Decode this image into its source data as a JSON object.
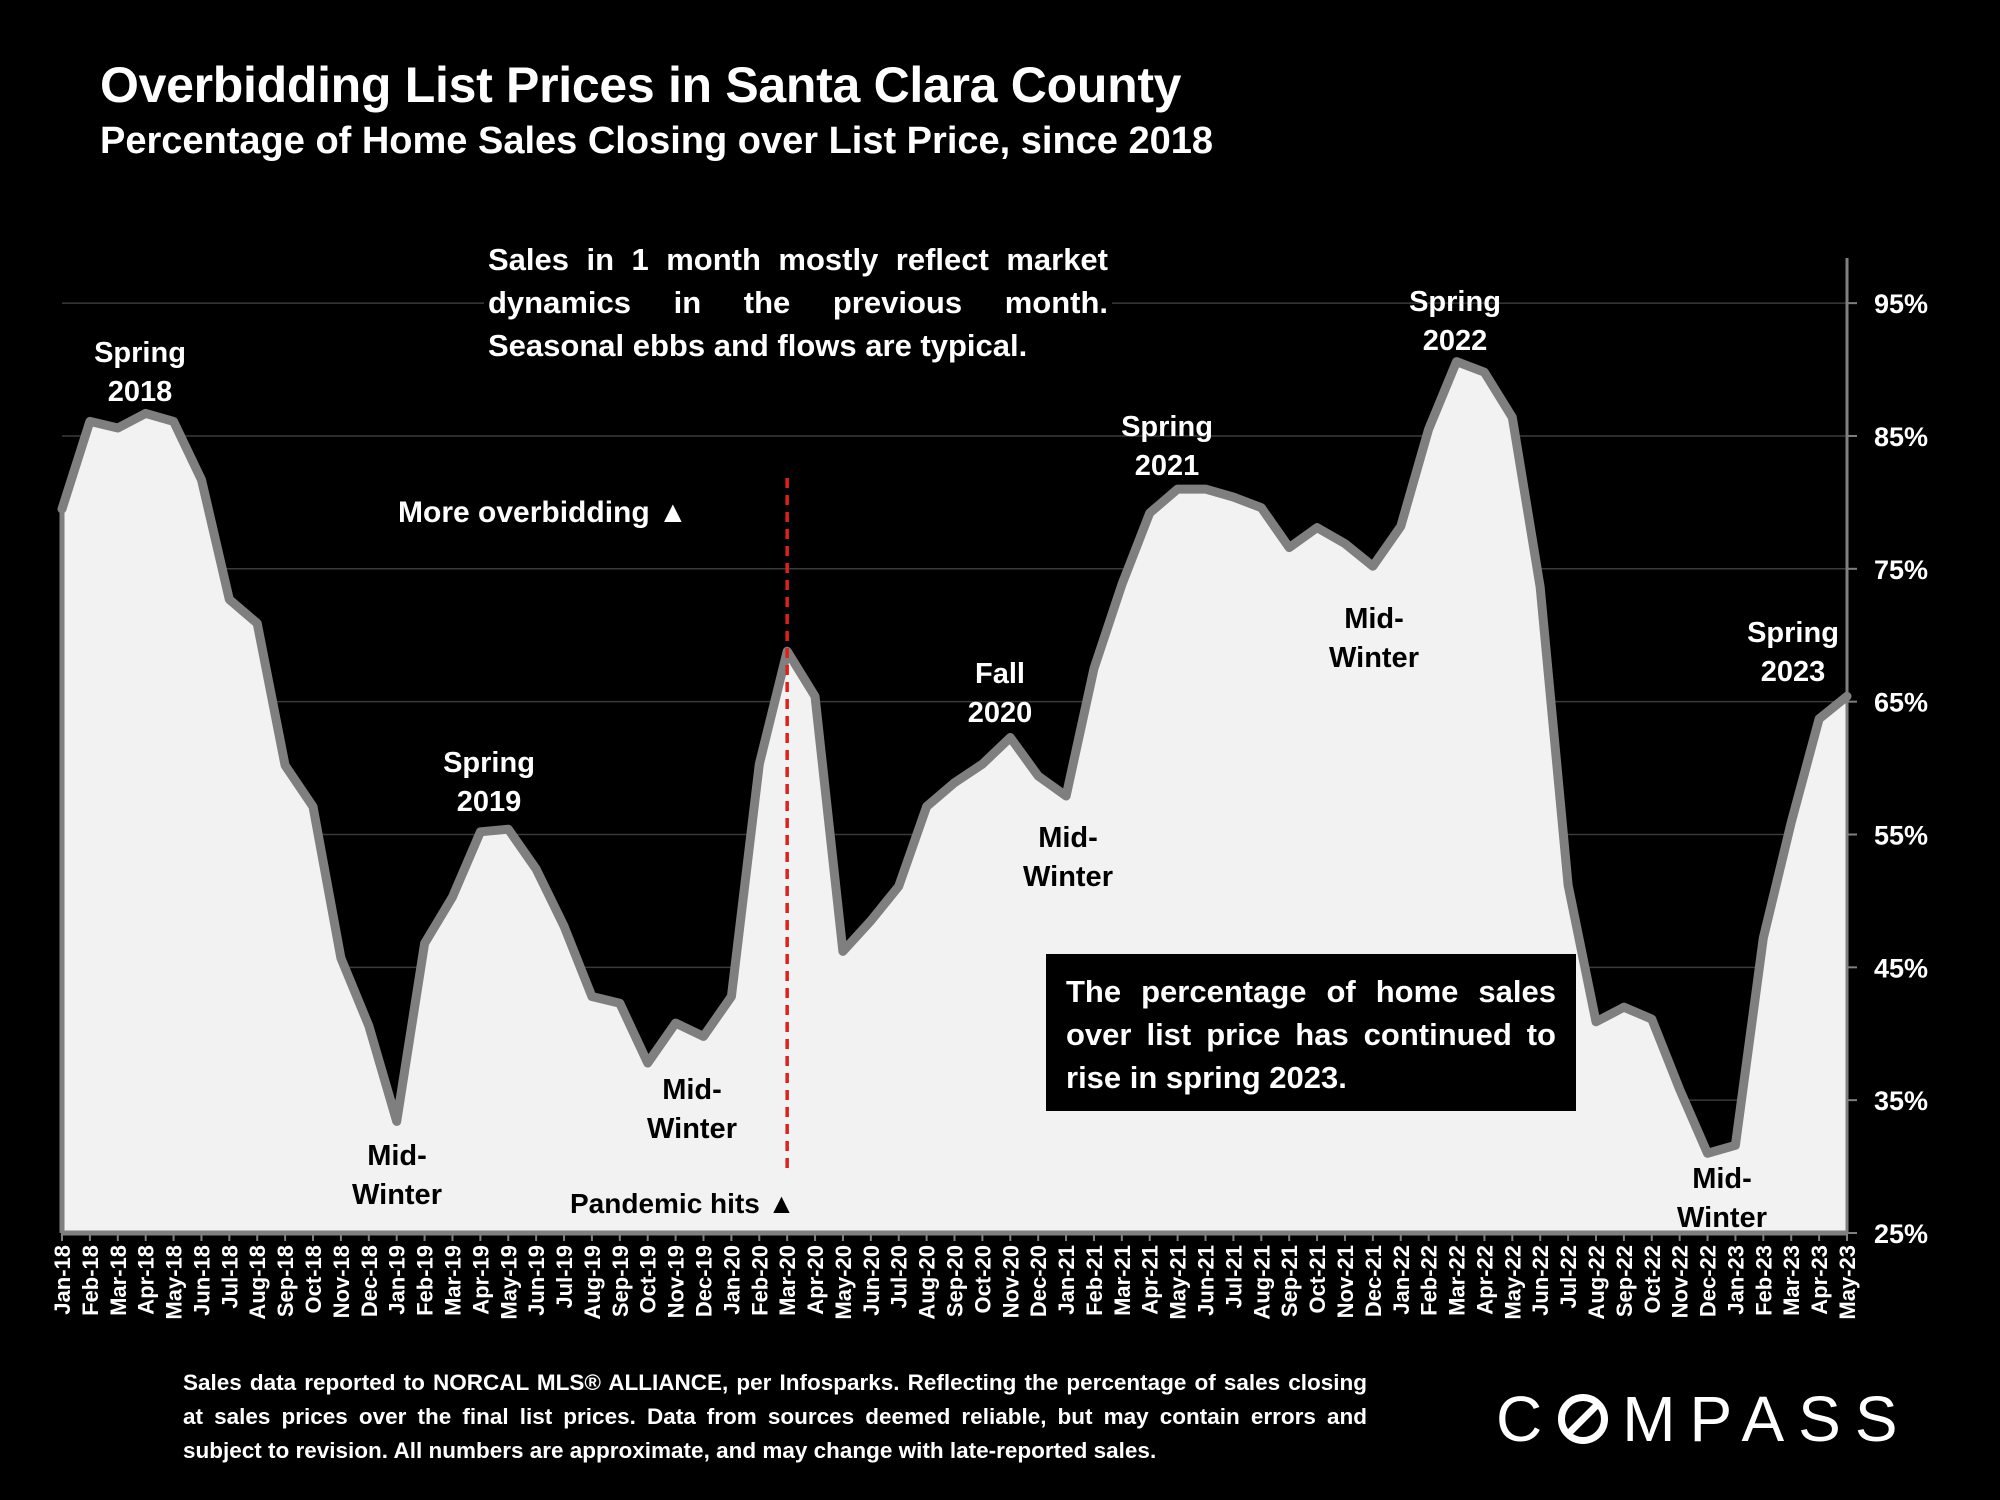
{
  "header": {
    "title": "Overbidding List Prices in Santa Clara County",
    "subtitle": "Percentage of Home Sales Closing over List Price, since 2018"
  },
  "annotations": {
    "note": "Sales in 1 month mostly reflect market dynamics in the previous month. Seasonal ebbs and flows are typical.",
    "more_overbidding": "More overbidding ▲",
    "pandemic": "Pandemic hits ▲",
    "callout": "The percentage of home sales over list price has continued to rise in spring 2023.",
    "labels": [
      {
        "lines": [
          "Spring",
          "2018"
        ],
        "month": "Apr-18"
      },
      {
        "lines": [
          "Mid-",
          "Winter"
        ],
        "month": "Jan-19"
      },
      {
        "lines": [
          "Spring",
          "2019"
        ],
        "month": "Apr-19"
      },
      {
        "lines": [
          "Mid-",
          "Winter"
        ],
        "month": "Dec-19"
      },
      {
        "lines": [
          "Fall",
          "2020"
        ],
        "month": "Nov-20"
      },
      {
        "lines": [
          "Mid-",
          "Winter"
        ],
        "month": "Jan-21"
      },
      {
        "lines": [
          "Spring",
          "2021"
        ],
        "month": "May-21"
      },
      {
        "lines": [
          "Mid-",
          "Winter"
        ],
        "month": "Dec-21"
      },
      {
        "lines": [
          "Spring",
          "2022"
        ],
        "month": "Mar-22"
      },
      {
        "lines": [
          "Mid-",
          "Winter"
        ],
        "month": "Dec-22"
      },
      {
        "lines": [
          "Spring",
          "2023"
        ],
        "month": "Apr-23"
      }
    ]
  },
  "footer": {
    "source": "Sales data reported to NORCAL MLS® ALLIANCE, per Infosparks. Reflecting the percentage of sales closing at sales prices over the final list prices. Data from sources deemed reliable, but may contain errors and subject to revision. All numbers are approximate, and may change with late-reported sales.",
    "logo_left": "C",
    "logo_right": "MPASS"
  },
  "chart_data": {
    "type": "area",
    "title": "Overbidding List Prices in Santa Clara County",
    "subtitle": "Percentage of Home Sales Closing over List Price, since 2018",
    "xlabel": "",
    "ylabel": "",
    "ylim": [
      25,
      99
    ],
    "y_ticks": [
      "25%",
      "35%",
      "45%",
      "55%",
      "65%",
      "75%",
      "85%",
      "95%"
    ],
    "y_tick_values": [
      25,
      35,
      45,
      55,
      65,
      75,
      85,
      95
    ],
    "grid": true,
    "event_marker": {
      "x": "Mar-20",
      "label": "Pandemic hits"
    },
    "fill_color": "#f2f2f2",
    "line_color": "#7f7f7f",
    "marker_color": "#e0201b",
    "x": [
      "Jan-18",
      "Feb-18",
      "Mar-18",
      "Apr-18",
      "May-18",
      "Jun-18",
      "Jul-18",
      "Aug-18",
      "Sep-18",
      "Oct-18",
      "Nov-18",
      "Dec-18",
      "Jan-19",
      "Feb-19",
      "Mar-19",
      "Apr-19",
      "May-19",
      "Jun-19",
      "Jul-19",
      "Aug-19",
      "Sep-19",
      "Oct-19",
      "Nov-19",
      "Dec-19",
      "Jan-20",
      "Feb-20",
      "Mar-20",
      "Apr-20",
      "May-20",
      "Jun-20",
      "Jul-20",
      "Aug-20",
      "Sep-20",
      "Oct-20",
      "Nov-20",
      "Dec-20",
      "Jan-21",
      "Feb-21",
      "Mar-21",
      "Apr-21",
      "May-21",
      "Jun-21",
      "Jul-21",
      "Aug-21",
      "Sep-21",
      "Oct-21",
      "Nov-21",
      "Dec-21",
      "Jan-22",
      "Feb-22",
      "Mar-22",
      "Apr-22",
      "May-22",
      "Jun-22",
      "Jul-22",
      "Aug-22",
      "Sep-22",
      "Oct-22",
      "Nov-22",
      "Dec-22",
      "Jan-23",
      "Feb-23",
      "Mar-23",
      "Apr-23",
      "May-23"
    ],
    "series": [
      {
        "values": [
          79.5,
          86.1,
          85.6,
          86.7,
          86.1,
          81.7,
          72.7,
          70.9,
          60.2,
          57.1,
          45.7,
          40.6,
          33.4,
          46.8,
          50.3,
          55.2,
          55.4,
          52.4,
          48.1,
          42.8,
          42.3,
          37.8,
          40.8,
          39.8,
          42.8,
          60.3,
          68.8,
          65.4,
          46.2,
          48.5,
          51.1,
          57.1,
          58.9,
          60.3,
          62.3,
          59.4,
          57.9,
          67.5,
          73.8,
          79.2,
          81.0,
          81.0,
          80.4,
          79.6,
          76.6,
          78.1,
          76.9,
          75.2,
          78.2,
          85.5,
          90.6,
          89.8,
          86.4,
          73.6,
          51.2,
          40.9,
          42.0,
          41.1,
          35.8,
          31.0,
          31.6,
          47.2,
          55.9,
          63.7,
          65.4
        ]
      }
    ]
  }
}
